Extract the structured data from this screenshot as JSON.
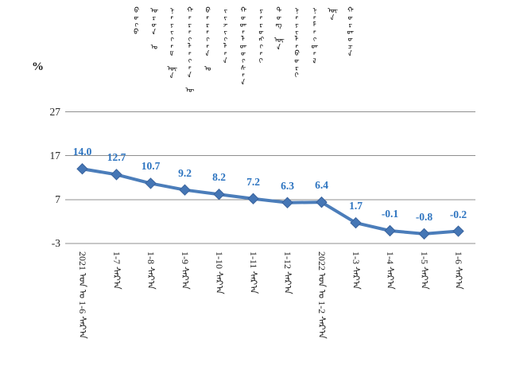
{
  "colors": {
    "background": "#ffffff",
    "line": "#4b7dba",
    "marker_fill": "#4576b5",
    "marker_edge": "#39629c",
    "data_label": "#2d74c0",
    "gridline": "#8f8f8f",
    "axis_text": "#262626",
    "title_text": "#000000"
  },
  "chart_title": {
    "words": [
      "ᠪᠦᠬᠦ",
      "ᠣᠷᠣᠨ ᠤ",
      "ᠨᠡᠶᠢᠭᠡᠮ ᠦᠨ",
      "ᠬᠡᠷᠡᠭᠯᠡᠭᠡᠨ ᠦ",
      "ᠪᠠᠷᠠᠭᠠᠨ ᠤ",
      "ᠵᠢᠵᠢᠭᠯᠡᠨ",
      "ᠬᠤᠳᠠᠯᠳᠤᠭᠰᠠᠨ",
      "ᠶᠡᠷᠦᠩᠬᠡᠢ",
      "ᠳᠦᠩ ᠦᠨ",
      "ᠨᠡᠶᠢᠯᠡᠪᠦᠷᠢ",
      "ᠨᠡᠮᠡᠭᠳᠡᠯ",
      "ᠦᠨ",
      "ᠬᠤᠷᠳᠤᠴᠠ"
    ]
  },
  "chart_data": {
    "type": "line",
    "title": "ᠪᠦᠬᠦ ᠣᠷᠣᠨ ᠤ ᠨᠡᠶᠢᠭᠡᠮ ᠦᠨ ᠬᠡᠷᠡᠭᠯᠡᠭᠡᠨ ᠦ ᠪᠠᠷᠠᠭᠠᠨ ᠤ ᠵᠢᠵᠢᠭᠯᠡᠨ ᠬᠤᠳᠠᠯᠳᠤᠭᠰᠠᠨ ᠶᠡᠷᠦᠩᠬᠡᠢ ᠳᠦᠩ ᠦᠨ ᠨᠡᠶᠢᠯᠡᠪᠦᠷᠢ ᠨᠡᠮᠡᠭᠳᠡᠯ ᠦᠨ ᠬᠤᠷᠳᠤᠴᠠ",
    "ylabel": "%",
    "xlabel": "",
    "categories": [
      "2021 ᠣᠨ ᠤ 1-6 ᠰᠠᠷ᠎ᠠ",
      "1-7 ᠰᠠᠷ᠎ᠠ",
      "1-8 ᠰᠠᠷ᠎ᠠ",
      "1-9 ᠰᠠᠷ᠎ᠠ",
      "1-10 ᠰᠠᠷ᠎ᠠ",
      "1-11 ᠰᠠᠷ᠎ᠠ",
      "1-12 ᠰᠠᠷ᠎ᠠ",
      "2022 ᠣᠨ ᠤ 1-2 ᠰᠠᠷ᠎ᠠ",
      "1-3 ᠰᠠᠷ᠎ᠠ",
      "1-4 ᠰᠠᠷ᠎ᠠ",
      "1-5 ᠰᠠᠷ᠎ᠠ",
      "1-6 ᠰᠠᠷ᠎ᠠ"
    ],
    "values": [
      14.0,
      12.7,
      10.7,
      9.2,
      8.2,
      7.2,
      6.3,
      6.4,
      1.7,
      -0.1,
      -0.8,
      -0.2
    ],
    "data_labels": [
      "14.0",
      "12.7",
      "10.7",
      "9.2",
      "8.2",
      "7.2",
      "6.3",
      "6.4",
      "1.7",
      "-0.1",
      "-0.8",
      "-0.2"
    ],
    "yticks": [
      "27",
      "17",
      "7",
      "-3"
    ],
    "ytick_values": [
      27,
      17,
      7,
      -3
    ],
    "ylim": [
      -3,
      27
    ],
    "grid": true,
    "legend": "none",
    "marker": "diamond"
  }
}
